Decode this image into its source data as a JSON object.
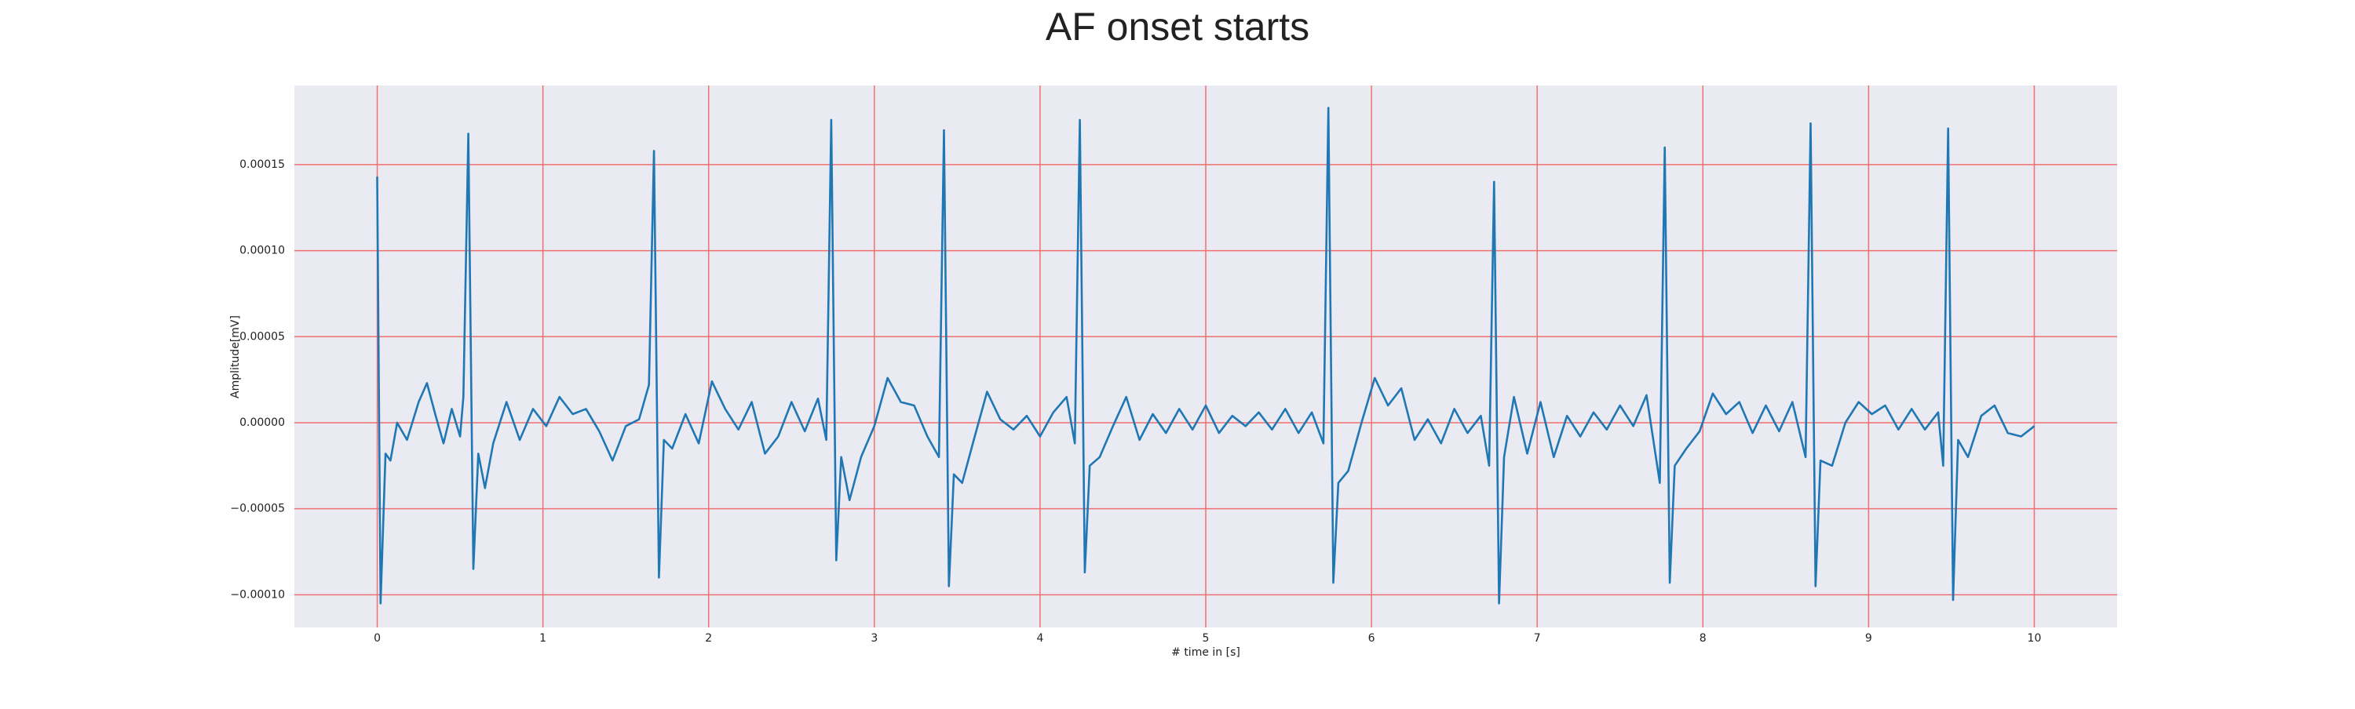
{
  "chart_data": {
    "type": "line",
    "title": "AF onset starts",
    "x_label": "# time in [s]",
    "y_label": "Amplitude[mV]",
    "grid": true,
    "grid_color": "#f07070",
    "background": "#eaeaf2",
    "xlim": [
      -0.5,
      10.5
    ],
    "xticks": [
      0,
      1,
      2,
      3,
      4,
      5,
      6,
      7,
      8,
      9,
      10
    ],
    "ylim": [
      -0.000119,
      0.000196
    ],
    "yticks": [
      {
        "value": -0.0001,
        "label": "−0.00010"
      },
      {
        "value": -5e-05,
        "label": "−0.00005"
      },
      {
        "value": 0,
        "label": "0.00000"
      },
      {
        "value": 5e-05,
        "label": "0.00005"
      },
      {
        "value": 0.0001,
        "label": "0.00010"
      },
      {
        "value": 0.00015,
        "label": "0.00015"
      }
    ],
    "x": [
      0,
      0.02,
      0.05,
      0.08,
      0.12,
      0.18,
      0.25,
      0.3,
      0.35,
      0.4,
      0.45,
      0.5,
      0.52,
      0.55,
      0.58,
      0.61,
      0.65,
      0.7,
      0.78,
      0.86,
      0.94,
      1.02,
      1.1,
      1.18,
      1.26,
      1.34,
      1.42,
      1.5,
      1.58,
      1.64,
      1.67,
      1.7,
      1.73,
      1.78,
      1.86,
      1.94,
      2.02,
      2.1,
      2.18,
      2.26,
      2.34,
      2.42,
      2.5,
      2.58,
      2.66,
      2.71,
      2.74,
      2.77,
      2.8,
      2.85,
      2.92,
      3.0,
      3.08,
      3.16,
      3.24,
      3.32,
      3.39,
      3.42,
      3.45,
      3.48,
      3.53,
      3.6,
      3.68,
      3.76,
      3.84,
      3.92,
      4.0,
      4.08,
      4.16,
      4.21,
      4.24,
      4.27,
      4.3,
      4.36,
      4.44,
      4.52,
      4.6,
      4.68,
      4.76,
      4.84,
      4.92,
      5.0,
      5.08,
      5.16,
      5.24,
      5.32,
      5.4,
      5.48,
      5.56,
      5.64,
      5.71,
      5.74,
      5.77,
      5.8,
      5.86,
      5.94,
      6.02,
      6.1,
      6.18,
      6.26,
      6.34,
      6.42,
      6.5,
      6.58,
      6.66,
      6.71,
      6.74,
      6.77,
      6.8,
      6.86,
      6.94,
      7.02,
      7.1,
      7.18,
      7.26,
      7.34,
      7.42,
      7.5,
      7.58,
      7.66,
      7.74,
      7.77,
      7.8,
      7.83,
      7.9,
      7.98,
      8.06,
      8.14,
      8.22,
      8.3,
      8.38,
      8.46,
      8.54,
      8.62,
      8.65,
      8.68,
      8.71,
      8.78,
      8.86,
      8.94,
      9.02,
      9.1,
      9.18,
      9.26,
      9.34,
      9.42,
      9.45,
      9.48,
      9.51,
      9.54,
      9.6,
      9.68,
      9.76,
      9.84,
      9.92,
      10.0
    ],
    "series": [
      {
        "color": "#1f77b4",
        "values": [
          0.000143,
          -0.000105,
          -1.8e-05,
          -2.2e-05,
          0.0,
          -1e-05,
          1.2e-05,
          2.3e-05,
          5e-06,
          -1.2e-05,
          8e-06,
          -8e-06,
          1.5e-05,
          0.000168,
          -8.5e-05,
          -1.8e-05,
          -3.8e-05,
          -1.2e-05,
          1.2e-05,
          -1e-05,
          8e-06,
          -2e-06,
          1.5e-05,
          5e-06,
          8e-06,
          -5e-06,
          -2.2e-05,
          -2e-06,
          2e-06,
          2.2e-05,
          0.000158,
          -9e-05,
          -1e-05,
          -1.5e-05,
          5e-06,
          -1.2e-05,
          2.4e-05,
          8e-06,
          -4e-06,
          1.2e-05,
          -1.8e-05,
          -8e-06,
          1.2e-05,
          -5e-06,
          1.4e-05,
          -1e-05,
          0.000176,
          -8e-05,
          -2e-05,
          -4.5e-05,
          -2e-05,
          -2e-06,
          2.6e-05,
          1.2e-05,
          1e-05,
          -8e-06,
          -2e-05,
          0.00017,
          -9.5e-05,
          -3e-05,
          -3.5e-05,
          -1e-05,
          1.8e-05,
          2e-06,
          -4e-06,
          4e-06,
          -8e-06,
          6e-06,
          1.5e-05,
          -1.2e-05,
          0.000176,
          -8.7e-05,
          -2.5e-05,
          -2e-05,
          -2e-06,
          1.5e-05,
          -1e-05,
          5e-06,
          -6e-06,
          8e-06,
          -4e-06,
          1e-05,
          -6e-06,
          4e-06,
          -2e-06,
          6e-06,
          -4e-06,
          8e-06,
          -6e-06,
          6e-06,
          -1.2e-05,
          0.000183,
          -9.3e-05,
          -3.5e-05,
          -2.8e-05,
          0.0,
          2.6e-05,
          1e-05,
          2e-05,
          -1e-05,
          2e-06,
          -1.2e-05,
          8e-06,
          -6e-06,
          4e-06,
          -2.5e-05,
          0.00014,
          -0.000105,
          -2e-05,
          1.5e-05,
          -1.8e-05,
          1.2e-05,
          -2e-05,
          4e-06,
          -8e-06,
          6e-06,
          -4e-06,
          1e-05,
          -2e-06,
          1.6e-05,
          -3.5e-05,
          0.00016,
          -9.3e-05,
          -2.5e-05,
          -1.5e-05,
          -5e-06,
          1.7e-05,
          5e-06,
          1.2e-05,
          -6e-06,
          1e-05,
          -5e-06,
          1.2e-05,
          -2e-05,
          0.000174,
          -9.5e-05,
          -2.2e-05,
          -2.5e-05,
          0.0,
          1.2e-05,
          5e-06,
          1e-05,
          -4e-06,
          8e-06,
          -4e-06,
          6e-06,
          -2.5e-05,
          0.000171,
          -0.000103,
          -1e-05,
          -2e-05,
          4e-06,
          1e-05,
          -6e-06,
          -8e-06,
          -2e-06
        ]
      }
    ]
  }
}
